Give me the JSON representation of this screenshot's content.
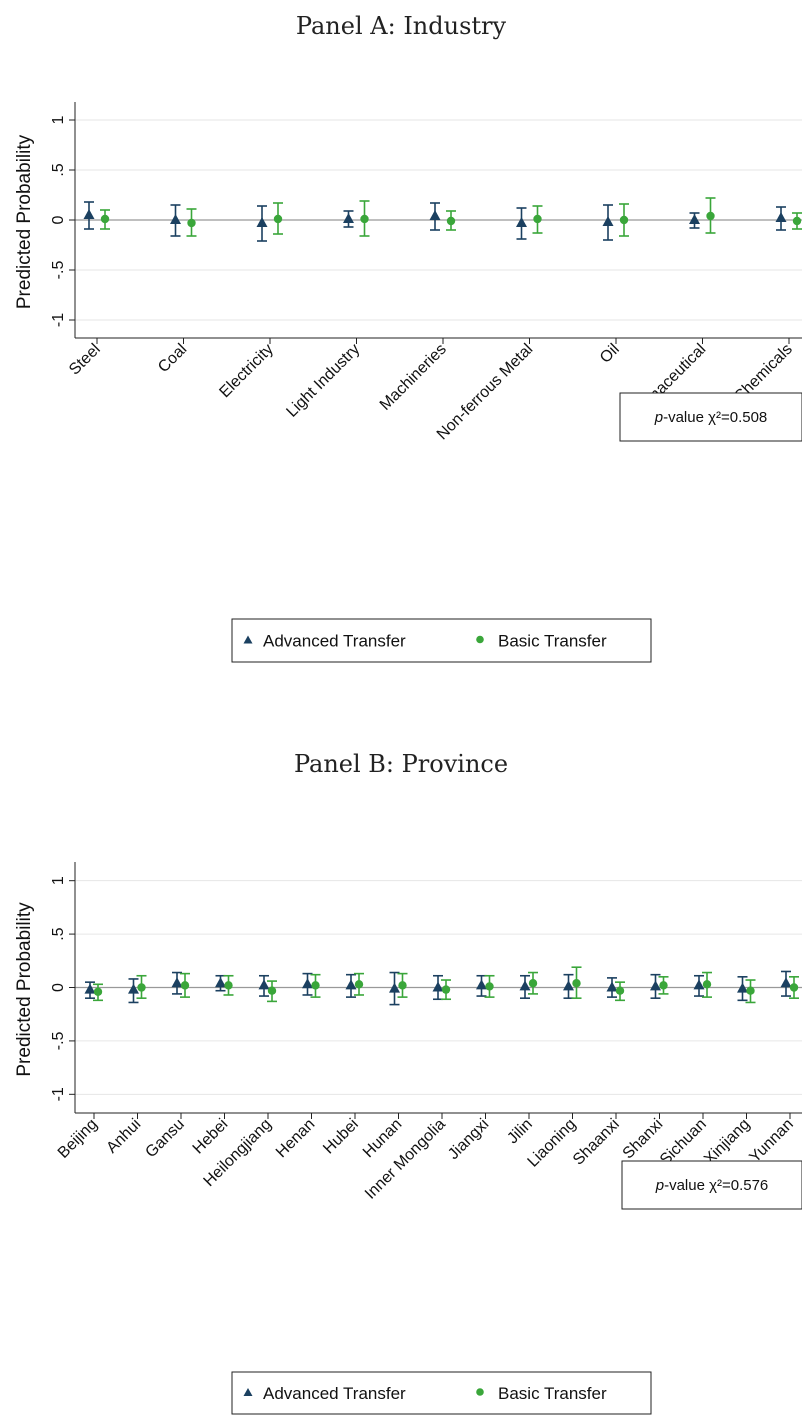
{
  "chart_data": [
    {
      "type": "scatter",
      "title": "Panel A: Industry",
      "ylabel": "Predicted Probability",
      "xlabel": "",
      "ylim": [
        -1.1,
        1.1
      ],
      "yticks": [
        {
          "value": 1,
          "label": "1"
        },
        {
          "value": 0.5,
          "label": ".5"
        },
        {
          "value": 0,
          "label": "0"
        },
        {
          "value": -0.5,
          "label": "-.5"
        },
        {
          "value": -1,
          "label": "-1"
        }
      ],
      "categories": [
        "Steel",
        "Coal",
        "Electricity",
        "Light Industry",
        "Machineries",
        "Non-ferrous Metal",
        "Oil",
        "Pharmaceutical",
        "Chemicals"
      ],
      "series": [
        {
          "name": "Advanced Transfer",
          "color": "#1b4060",
          "marker": "triangle",
          "values": [
            0.05,
            0.0,
            -0.03,
            0.01,
            0.04,
            -0.03,
            -0.02,
            0.0,
            0.02
          ],
          "lower": [
            -0.09,
            -0.16,
            -0.21,
            -0.07,
            -0.1,
            -0.19,
            -0.2,
            -0.08,
            -0.1
          ],
          "upper": [
            0.18,
            0.15,
            0.14,
            0.09,
            0.17,
            0.12,
            0.15,
            0.07,
            0.13
          ]
        },
        {
          "name": "Basic Transfer",
          "color": "#3aa63a",
          "marker": "circle",
          "values": [
            0.01,
            -0.03,
            0.01,
            0.01,
            -0.01,
            0.01,
            0.0,
            0.04,
            -0.01
          ],
          "lower": [
            -0.09,
            -0.16,
            -0.14,
            -0.16,
            -0.1,
            -0.13,
            -0.16,
            -0.13,
            -0.09
          ],
          "upper": [
            0.1,
            0.11,
            0.17,
            0.19,
            0.09,
            0.14,
            0.16,
            0.22,
            0.07
          ]
        }
      ],
      "annotation": {
        "italic": "p",
        "text": "-value χ²=0.508"
      },
      "legend": {
        "position": "bottom",
        "items": [
          "Advanced Transfer",
          "Basic Transfer"
        ]
      },
      "grid": true
    },
    {
      "type": "scatter",
      "title": "Panel B: Province",
      "ylabel": "Predicted Probability",
      "xlabel": "",
      "ylim": [
        -1.1,
        1.1
      ],
      "yticks": [
        {
          "value": 1,
          "label": "1"
        },
        {
          "value": 0.5,
          "label": ".5"
        },
        {
          "value": 0,
          "label": "0"
        },
        {
          "value": -0.5,
          "label": "-.5"
        },
        {
          "value": -1,
          "label": "-1"
        }
      ],
      "categories": [
        "Beijing",
        "Anhui",
        "Gansu",
        "Hebei",
        "Heilongjiang",
        "Henan",
        "Hubei",
        "Hunan",
        "Inner Mongolia",
        "Jiangxi",
        "Jilin",
        "Liaoning",
        "Shaanxi",
        "Shanxi",
        "Sichuan",
        "Xinjiang",
        "Yunnan"
      ],
      "series": [
        {
          "name": "Advanced Transfer",
          "color": "#1b4060",
          "marker": "triangle",
          "values": [
            -0.02,
            -0.02,
            0.04,
            0.04,
            0.02,
            0.03,
            0.02,
            -0.01,
            0.0,
            0.02,
            0.01,
            0.01,
            0.0,
            0.01,
            0.02,
            -0.01,
            0.04
          ],
          "lower": [
            -0.1,
            -0.14,
            -0.06,
            -0.03,
            -0.08,
            -0.07,
            -0.09,
            -0.16,
            -0.11,
            -0.08,
            -0.1,
            -0.1,
            -0.09,
            -0.1,
            -0.08,
            -0.12,
            -0.08
          ],
          "upper": [
            0.05,
            0.08,
            0.14,
            0.11,
            0.11,
            0.13,
            0.12,
            0.14,
            0.11,
            0.11,
            0.11,
            0.12,
            0.09,
            0.12,
            0.11,
            0.1,
            0.15
          ]
        },
        {
          "name": "Basic Transfer",
          "color": "#3aa63a",
          "marker": "circle",
          "values": [
            -0.04,
            0.0,
            0.02,
            0.02,
            -0.03,
            0.02,
            0.03,
            0.02,
            -0.02,
            0.01,
            0.04,
            0.04,
            -0.03,
            0.02,
            0.03,
            -0.03,
            0.0
          ],
          "lower": [
            -0.12,
            -0.1,
            -0.09,
            -0.07,
            -0.13,
            -0.09,
            -0.07,
            -0.09,
            -0.11,
            -0.09,
            -0.06,
            -0.1,
            -0.12,
            -0.06,
            -0.09,
            -0.14,
            -0.1
          ],
          "upper": [
            0.03,
            0.11,
            0.13,
            0.11,
            0.06,
            0.12,
            0.13,
            0.13,
            0.07,
            0.11,
            0.14,
            0.19,
            0.05,
            0.1,
            0.14,
            0.07,
            0.1
          ]
        }
      ],
      "annotation": {
        "italic": "p",
        "text": "-value χ²=0.576"
      },
      "legend": {
        "position": "bottom",
        "items": [
          "Advanced Transfer",
          "Basic Transfer"
        ]
      },
      "grid": true
    }
  ]
}
